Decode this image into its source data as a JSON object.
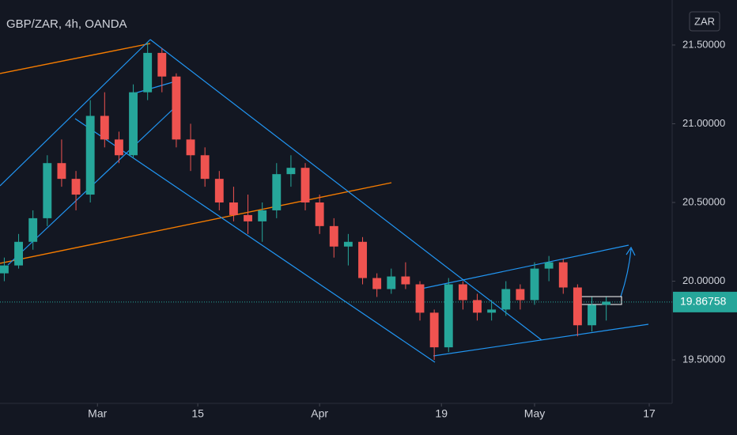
{
  "chart_data": {
    "type": "candlestick",
    "title": "GBP/ZAR, 4h, OANDA",
    "currency": "ZAR",
    "up_color": "#26a69a",
    "down_color": "#ef5350",
    "x": [
      -13,
      -11,
      -9,
      -7,
      -5,
      -3,
      -1,
      1,
      3,
      5,
      7,
      9,
      11,
      13,
      15,
      17,
      19,
      21,
      23,
      25,
      27,
      29,
      31,
      33,
      35,
      37,
      39,
      41,
      43,
      45,
      47,
      49,
      51,
      53,
      55,
      57,
      59,
      61,
      63,
      65,
      67,
      69,
      71
    ],
    "open": [
      20.05,
      20.1,
      20.25,
      20.4,
      20.75,
      20.65,
      20.55,
      21.05,
      20.9,
      20.8,
      21.2,
      21.45,
      21.3,
      20.9,
      20.8,
      20.65,
      20.5,
      20.42,
      20.38,
      20.45,
      20.68,
      20.72,
      20.5,
      20.35,
      20.22,
      20.25,
      20.02,
      19.95,
      20.03,
      19.98,
      19.8,
      19.58,
      19.98,
      19.88,
      19.8,
      19.82,
      19.95,
      19.88,
      20.08,
      20.12,
      19.96,
      19.72,
      19.85
    ],
    "high": [
      20.15,
      20.3,
      20.45,
      20.8,
      20.9,
      20.7,
      21.15,
      21.2,
      20.95,
      21.25,
      21.52,
      21.48,
      21.32,
      21.0,
      20.85,
      20.7,
      20.6,
      20.55,
      20.5,
      20.75,
      20.8,
      20.75,
      20.55,
      20.4,
      20.3,
      20.28,
      20.05,
      20.08,
      20.12,
      20.0,
      19.82,
      20.02,
      20.0,
      19.92,
      19.88,
      20.0,
      19.98,
      20.12,
      20.16,
      20.14,
      19.98,
      19.9,
      19.9
    ],
    "low": [
      20.0,
      20.08,
      20.2,
      20.35,
      20.6,
      20.45,
      20.5,
      20.85,
      20.75,
      20.78,
      21.15,
      21.2,
      20.85,
      20.7,
      20.6,
      20.45,
      20.38,
      20.3,
      20.25,
      20.4,
      20.6,
      20.45,
      20.3,
      20.15,
      20.1,
      19.98,
      19.9,
      19.92,
      19.95,
      19.75,
      19.5,
      19.55,
      19.82,
      19.75,
      19.75,
      19.78,
      19.82,
      19.85,
      20.0,
      19.92,
      19.65,
      19.68,
      19.75
    ],
    "close": [
      20.1,
      20.25,
      20.4,
      20.75,
      20.65,
      20.55,
      21.05,
      20.9,
      20.8,
      21.2,
      21.45,
      21.3,
      20.9,
      20.8,
      20.65,
      20.5,
      20.42,
      20.38,
      20.45,
      20.68,
      20.72,
      20.5,
      20.35,
      20.22,
      20.25,
      20.02,
      19.95,
      20.03,
      19.98,
      19.8,
      19.58,
      19.98,
      19.88,
      19.8,
      19.82,
      19.95,
      19.88,
      20.08,
      20.12,
      19.96,
      19.72,
      19.85,
      19.87
    ],
    "last": 19.86758,
    "xlim": [
      -13.6,
      80.2
    ],
    "xticks": [
      {
        "value": 0,
        "label": "Mar"
      },
      {
        "value": 14,
        "label": "15"
      },
      {
        "value": 31,
        "label": "Apr"
      },
      {
        "value": 48,
        "label": "19"
      },
      {
        "value": 61,
        "label": "May"
      },
      {
        "value": 77,
        "label": "17"
      }
    ],
    "ylim": [
      19.224,
      21.786
    ],
    "yticks": [
      {
        "value": 19.5,
        "label": "19.50000"
      },
      {
        "value": 20,
        "label": "20.00000"
      },
      {
        "value": 20.5,
        "label": "20.50000"
      },
      {
        "value": 21,
        "label": "21.00000"
      },
      {
        "value": 21.5,
        "label": "21.50000"
      }
    ]
  }
}
